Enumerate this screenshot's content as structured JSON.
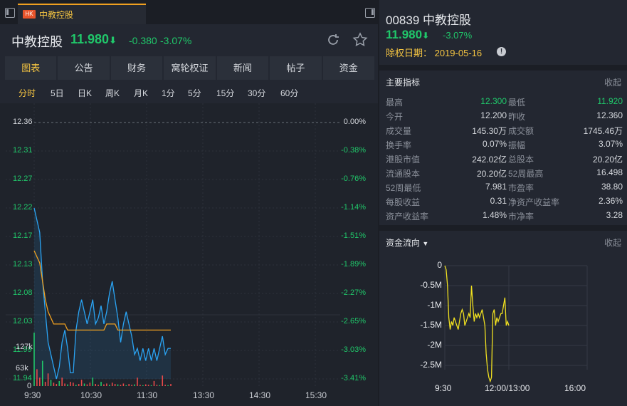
{
  "tab": {
    "badge": "HK",
    "title": "中教控股"
  },
  "header": {
    "name": "中教控股",
    "price": "11.980",
    "arrow": "⬇",
    "change": "-0.380",
    "change_pct": "-3.07%"
  },
  "main_tabs": [
    "图表",
    "公告",
    "财务",
    "窝轮权证",
    "新闻",
    "帖子",
    "资金"
  ],
  "period_tabs": [
    "分时",
    "5日",
    "日K",
    "周K",
    "月K",
    "1分",
    "5分",
    "15分",
    "30分",
    "60分"
  ],
  "intraday": {
    "y_labels": [
      "12.36",
      "12.31",
      "12.27",
      "12.22",
      "12.17",
      "12.13",
      "12.08",
      "12.03",
      "11.99",
      "11.94"
    ],
    "pct_labels": [
      "0.00%",
      "-0.38%",
      "-0.76%",
      "-1.14%",
      "-1.51%",
      "-1.89%",
      "-2.27%",
      "-2.65%",
      "-3.03%",
      "-3.41%"
    ],
    "vol_labels": [
      "127k",
      "63k",
      "0"
    ],
    "x_labels": [
      "9:30",
      "10:30",
      "11:30",
      "13:30",
      "14:30",
      "15:30"
    ],
    "colors": {
      "price": "#2aa4f4",
      "avg": "#f0a020",
      "vol_up": "#e84a4a",
      "vol_down": "#20c76a"
    }
  },
  "right_panel": {
    "code_name": "00839 中教控股",
    "price": "11.980",
    "arrow": "⬇",
    "change_pct": "-3.07%",
    "ex_div": "除权日期： 2019-05-16",
    "info_icon": "!"
  },
  "indicators": {
    "title": "主要指标",
    "collapse": "收起",
    "rows": [
      {
        "k1": "最高",
        "v1": "12.300",
        "k2": "最低",
        "v2": "11.920"
      },
      {
        "k1": "今开",
        "v1": "12.200",
        "k2": "昨收",
        "v2": "12.360"
      },
      {
        "k1": "成交量",
        "v1": "145.30万",
        "k2": "成交额",
        "v2": "1745.46万"
      },
      {
        "k1": "换手率",
        "v1": "0.07%",
        "k2": "振幅",
        "v2": "3.07%"
      },
      {
        "k1": "港股市值",
        "v1": "242.02亿",
        "k2": "总股本",
        "v2": "20.20亿"
      },
      {
        "k1": "流通股本",
        "v1": "20.20亿",
        "k2": "52周最高",
        "v2": "16.498"
      },
      {
        "k1": "52周最低",
        "v1": "7.981",
        "k2": "市盈率",
        "v2": "38.80"
      },
      {
        "k1": "每股收益",
        "v1": "0.31",
        "k2": "净资产收益率",
        "v2": "2.36%"
      },
      {
        "k1": "资产收益率",
        "v1": "1.48%",
        "k2": "市净率",
        "v2": "3.28"
      }
    ]
  },
  "capital_flow": {
    "title": "资金流向",
    "collapse": "收起",
    "y_labels": [
      "0",
      "-0.5M",
      "-1M",
      "-1.5M",
      "-2M",
      "-2.5M"
    ],
    "x_labels": [
      "9:30",
      "12:00/13:00",
      "16:00"
    ],
    "color": "#f0e020"
  }
}
